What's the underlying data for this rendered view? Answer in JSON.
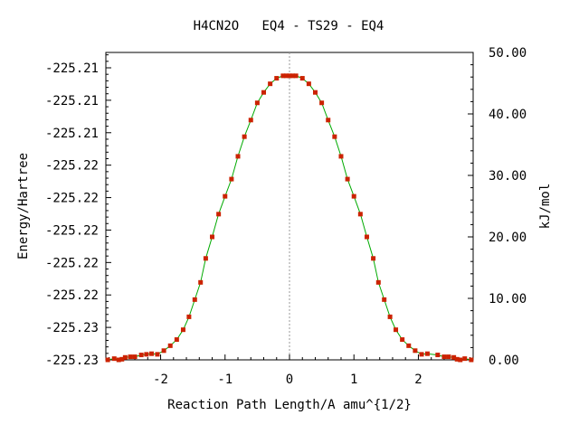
{
  "chart_data": {
    "type": "scatter",
    "title": "H4CN2O   EQ4 - TS29 - EQ4",
    "xlabel": "Reaction Path Length/A amu^{1/2}",
    "ylabel_left": "Energy/Hartree",
    "ylabel_right": "kJ/mol",
    "xlim": [
      -2.85,
      2.85
    ],
    "ylim_right_kjmol": [
      0,
      50
    ],
    "x_ticks": [
      -2,
      -1,
      0,
      1,
      2
    ],
    "x_tick_labels": [
      "-2",
      "-1",
      "0",
      "1",
      "2"
    ],
    "left_tick_labels": [
      "-225.21",
      "-225.21",
      "-225.21",
      "-225.22",
      "-225.22",
      "-225.22",
      "-225.22",
      "-225.22",
      "-225.23",
      "-225.23"
    ],
    "right_ticks": [
      0,
      10,
      20,
      30,
      40,
      50
    ],
    "right_tick_labels": [
      "0.00",
      "10.00",
      "20.00",
      "30.00",
      "40.00",
      "50.00"
    ],
    "ts_marker_x": 0,
    "grid": false,
    "series": [
      {
        "marker_color": "#cc2200",
        "line_color": "#00aa00",
        "x": [
          -2.82,
          -2.72,
          -2.65,
          -2.6,
          -2.55,
          -2.47,
          -2.4,
          -2.3,
          -2.22,
          -2.14,
          -2.05,
          -1.95,
          -1.85,
          -1.75,
          -1.65,
          -1.56,
          -1.47,
          -1.38,
          -1.3,
          -1.2,
          -1.1,
          -1.0,
          -0.9,
          -0.8,
          -0.7,
          -0.6,
          -0.5,
          -0.4,
          -0.3,
          -0.2,
          -0.1,
          -0.05,
          0,
          0.05,
          0.1,
          0.2,
          0.3,
          0.4,
          0.5,
          0.6,
          0.7,
          0.8,
          0.9,
          1.0,
          1.1,
          1.2,
          1.3,
          1.38,
          1.47,
          1.56,
          1.65,
          1.75,
          1.85,
          1.95,
          2.05,
          2.14,
          2.3,
          2.4,
          2.47,
          2.55,
          2.6,
          2.65,
          2.72,
          2.82
        ],
        "y": [
          0.0,
          0.2,
          0.0,
          0.1,
          0.4,
          0.5,
          0.5,
          0.8,
          0.9,
          1.0,
          0.9,
          1.5,
          2.3,
          3.3,
          4.9,
          7.0,
          9.8,
          12.6,
          16.5,
          20.0,
          23.7,
          26.6,
          29.4,
          33.1,
          36.3,
          39.0,
          41.8,
          43.5,
          44.9,
          45.8,
          46.2,
          46.2,
          46.2,
          46.2,
          46.2,
          45.8,
          44.9,
          43.5,
          41.8,
          39.0,
          36.3,
          33.1,
          29.4,
          26.6,
          23.7,
          20.0,
          16.5,
          12.6,
          9.8,
          7.0,
          4.9,
          3.3,
          2.3,
          1.5,
          0.9,
          1.0,
          0.8,
          0.5,
          0.5,
          0.4,
          0.1,
          0.0,
          0.2,
          0.0
        ]
      }
    ]
  }
}
